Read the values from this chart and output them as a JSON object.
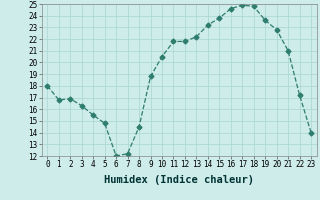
{
  "x": [
    0,
    1,
    2,
    3,
    4,
    5,
    6,
    7,
    8,
    9,
    10,
    11,
    12,
    13,
    14,
    15,
    16,
    17,
    18,
    19,
    20,
    21,
    22,
    23
  ],
  "y": [
    18.0,
    16.8,
    16.9,
    16.3,
    15.5,
    14.8,
    12.0,
    12.2,
    14.5,
    18.8,
    20.5,
    21.8,
    21.8,
    22.2,
    23.2,
    23.8,
    24.6,
    24.9,
    24.8,
    23.6,
    22.8,
    21.0,
    17.2,
    14.0
  ],
  "line_color": "#2e7d6e",
  "marker": "D",
  "marker_size": 2.5,
  "bg_color": "#cdecea",
  "grid_color": "#aed8d5",
  "xlabel": "Humidex (Indice chaleur)",
  "ylim": [
    12,
    25
  ],
  "xlim": [
    -0.5,
    23.5
  ],
  "yticks": [
    12,
    13,
    14,
    15,
    16,
    17,
    18,
    19,
    20,
    21,
    22,
    23,
    24,
    25
  ],
  "xticks": [
    0,
    1,
    2,
    3,
    4,
    5,
    6,
    7,
    8,
    9,
    10,
    11,
    12,
    13,
    14,
    15,
    16,
    17,
    18,
    19,
    20,
    21,
    22,
    23
  ],
  "tick_fontsize": 5.5,
  "xlabel_fontsize": 7.5
}
